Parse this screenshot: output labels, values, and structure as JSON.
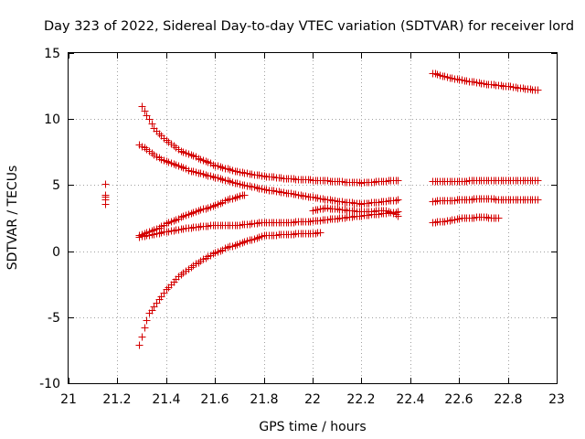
{
  "chart_data": {
    "type": "scatter",
    "title": "Day 323 of 2022, Sidereal Day-to-day VTEC variation (SDTVAR) for receiver lord",
    "xlabel": "GPS time / hours",
    "ylabel": "SDTVAR / TECUs",
    "xlim": [
      21,
      23
    ],
    "ylim": [
      -10,
      15
    ],
    "xticks": [
      21,
      21.2,
      21.4,
      21.6,
      21.8,
      22,
      22.2,
      22.4,
      22.6,
      22.8,
      23
    ],
    "xtick_labels": [
      "21",
      "21.2",
      "21.4",
      "21.6",
      "21.8",
      "22",
      "22.2",
      "22.4",
      "22.6",
      "22.8",
      "23"
    ],
    "yticks": [
      15,
      10,
      5,
      0,
      -5,
      -10
    ],
    "ytick_labels": [
      "15",
      "10",
      "5",
      "0",
      "-5",
      "-10"
    ],
    "grid": true,
    "marker": "+",
    "color": "#d40000",
    "series": [
      {
        "name": "early-isolated",
        "x": [
          21.15,
          21.15,
          21.15,
          21.15,
          21.15
        ],
        "y": [
          5.1,
          4.3,
          4.1,
          3.9,
          3.6
        ]
      },
      {
        "name": "track-a",
        "step": 0.01,
        "x_start": 21.3,
        "x_end": 22.35,
        "y_anchors": [
          [
            21.3,
            11.0
          ],
          [
            21.35,
            9.3
          ],
          [
            21.4,
            8.4
          ],
          [
            21.45,
            7.7
          ],
          [
            21.5,
            7.3
          ],
          [
            21.6,
            6.5
          ],
          [
            21.7,
            6.0
          ],
          [
            21.8,
            5.7
          ],
          [
            21.9,
            5.5
          ],
          [
            22.0,
            5.4
          ],
          [
            22.2,
            5.2
          ],
          [
            22.35,
            5.4
          ]
        ]
      },
      {
        "name": "track-b",
        "step": 0.01,
        "x_start": 21.29,
        "x_end": 22.35,
        "y_anchors": [
          [
            21.29,
            8.1
          ],
          [
            21.35,
            7.3
          ],
          [
            21.4,
            6.8
          ],
          [
            21.5,
            6.1
          ],
          [
            21.6,
            5.6
          ],
          [
            21.7,
            5.1
          ],
          [
            21.8,
            4.7
          ],
          [
            21.9,
            4.4
          ],
          [
            22.0,
            4.1
          ],
          [
            22.1,
            3.8
          ],
          [
            22.2,
            3.6
          ],
          [
            22.3,
            3.8
          ],
          [
            22.35,
            3.9
          ]
        ]
      },
      {
        "name": "track-c",
        "step": 0.01,
        "x_start": 21.29,
        "x_end": 21.72,
        "y_anchors": [
          [
            21.29,
            1.2
          ],
          [
            21.35,
            1.6
          ],
          [
            21.4,
            2.1
          ],
          [
            21.5,
            2.9
          ],
          [
            21.6,
            3.5
          ],
          [
            21.65,
            3.9
          ],
          [
            21.7,
            4.2
          ],
          [
            21.72,
            4.3
          ]
        ]
      },
      {
        "name": "track-d",
        "step": 0.01,
        "x_start": 21.29,
        "x_end": 22.35,
        "y_anchors": [
          [
            21.29,
            1.1
          ],
          [
            21.4,
            1.5
          ],
          [
            21.5,
            1.8
          ],
          [
            21.6,
            2.0
          ],
          [
            21.7,
            2.0
          ],
          [
            21.8,
            2.2
          ],
          [
            21.9,
            2.2
          ],
          [
            22.0,
            2.3
          ],
          [
            22.1,
            2.5
          ],
          [
            22.2,
            2.7
          ],
          [
            22.3,
            2.9
          ],
          [
            22.35,
            3.0
          ]
        ]
      },
      {
        "name": "track-e",
        "step": 0.01,
        "x_start": 22.0,
        "x_end": 22.35,
        "y_anchors": [
          [
            22.0,
            3.1
          ],
          [
            22.05,
            3.3
          ],
          [
            22.1,
            3.2
          ],
          [
            22.2,
            3.0
          ],
          [
            22.3,
            3.1
          ],
          [
            22.35,
            2.7
          ]
        ]
      },
      {
        "name": "track-f",
        "step": 0.01,
        "x_start": 21.29,
        "x_end": 22.03,
        "y_anchors": [
          [
            21.29,
            -7.1
          ],
          [
            21.31,
            -5.8
          ],
          [
            21.33,
            -4.7
          ],
          [
            21.36,
            -3.9
          ],
          [
            21.4,
            -2.9
          ],
          [
            21.45,
            -1.9
          ],
          [
            21.5,
            -1.2
          ],
          [
            21.55,
            -0.6
          ],
          [
            21.6,
            -0.1
          ],
          [
            21.65,
            0.3
          ],
          [
            21.7,
            0.6
          ],
          [
            21.75,
            0.9
          ],
          [
            21.8,
            1.2
          ],
          [
            21.9,
            1.3
          ],
          [
            22.03,
            1.4
          ]
        ]
      },
      {
        "name": "track-g",
        "step": 0.01,
        "x_start": 22.49,
        "x_end": 22.92,
        "y_anchors": [
          [
            22.49,
            13.5
          ],
          [
            22.55,
            13.2
          ],
          [
            22.6,
            13.0
          ],
          [
            22.7,
            12.7
          ],
          [
            22.8,
            12.5
          ],
          [
            22.92,
            12.2
          ]
        ]
      },
      {
        "name": "track-h",
        "step": 0.01,
        "x_start": 22.49,
        "x_end": 22.92,
        "y_anchors": [
          [
            22.49,
            5.3
          ],
          [
            22.6,
            5.3
          ],
          [
            22.7,
            5.4
          ],
          [
            22.8,
            5.4
          ],
          [
            22.92,
            5.4
          ]
        ]
      },
      {
        "name": "track-i",
        "step": 0.01,
        "x_start": 22.49,
        "x_end": 22.92,
        "y_anchors": [
          [
            22.49,
            3.8
          ],
          [
            22.6,
            3.9
          ],
          [
            22.7,
            4.0
          ],
          [
            22.8,
            3.9
          ],
          [
            22.92,
            3.9
          ]
        ]
      },
      {
        "name": "track-j",
        "step": 0.01,
        "x_start": 22.49,
        "x_end": 22.76,
        "y_anchors": [
          [
            22.49,
            2.2
          ],
          [
            22.55,
            2.3
          ],
          [
            22.6,
            2.5
          ],
          [
            22.7,
            2.6
          ],
          [
            22.76,
            2.5
          ]
        ]
      }
    ]
  }
}
